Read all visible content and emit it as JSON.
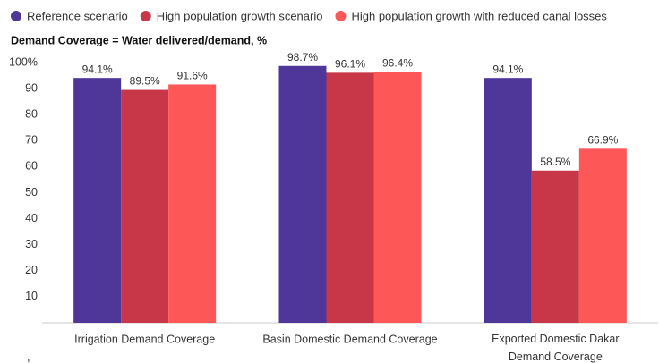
{
  "chart_data": {
    "type": "bar",
    "subtitle": "Demand Coverage = Water delivered/demand, %",
    "categories": [
      "Irrigation Demand Coverage",
      "Basin Domestic Demand Coverage",
      "Exported Domestic Dakar Demand Coverage"
    ],
    "series": [
      {
        "name": "Reference scenario",
        "color": "#4f3699",
        "values": [
          94.1,
          98.7,
          94.1
        ],
        "value_labels": [
          "94.1%",
          "98.7%",
          "94.1%"
        ]
      },
      {
        "name": "High population growth scenario",
        "color": "#c83747",
        "values": [
          89.5,
          96.1,
          58.5
        ],
        "value_labels": [
          "89.5%",
          "96.1%",
          "58.5%"
        ]
      },
      {
        "name": "High population growth with reduced canal losses",
        "color": "#fe5757",
        "values": [
          91.6,
          96.4,
          66.9
        ],
        "value_labels": [
          "91.6%",
          "96.4%",
          "66.9%"
        ]
      }
    ],
    "ylim": [
      0,
      100
    ],
    "yticks": [
      10,
      20,
      30,
      40,
      50,
      60,
      70,
      80,
      90,
      {
        "value": 100,
        "label": "100%"
      }
    ],
    "grid": false,
    "legend": "top",
    "footnote": ","
  }
}
